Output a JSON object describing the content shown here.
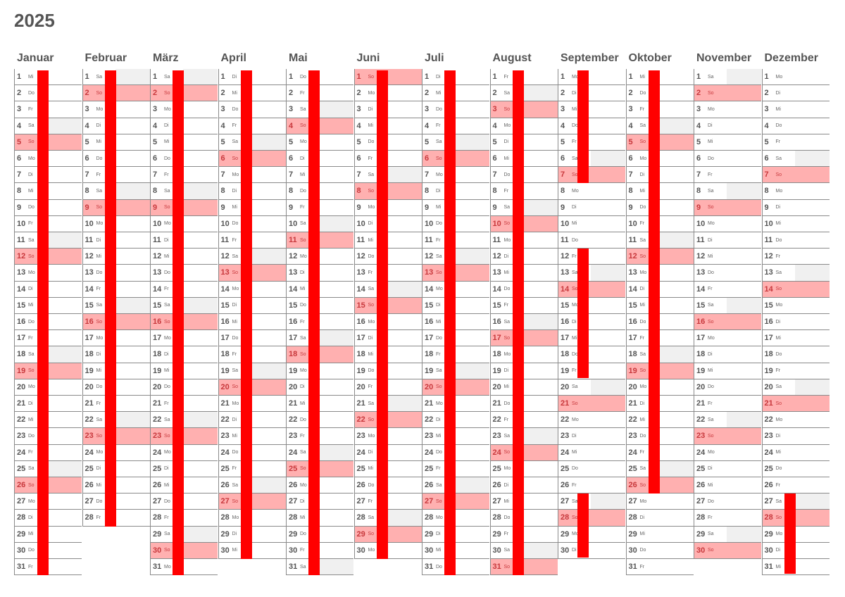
{
  "year": "2025",
  "colors": {
    "sunday_fill": "#ffb0b0",
    "saturday_fill": "#f0f0f0",
    "vacation_bar": "#ff0000",
    "text": "#555555"
  },
  "weekday_labels": [
    "Mo",
    "Di",
    "Mi",
    "Do",
    "Fr",
    "Sa",
    "So"
  ],
  "months": [
    {
      "name": "Januar",
      "days": 31,
      "first_weekday": 2,
      "vacation_days": [
        [
          1,
          31
        ]
      ]
    },
    {
      "name": "Februar",
      "days": 28,
      "first_weekday": 5,
      "vacation_days": [
        [
          1,
          28
        ]
      ]
    },
    {
      "name": "März",
      "days": 31,
      "first_weekday": 5,
      "vacation_days": [
        [
          1,
          31
        ]
      ]
    },
    {
      "name": "April",
      "days": 30,
      "first_weekday": 1,
      "vacation_days": [
        [
          1,
          30
        ]
      ]
    },
    {
      "name": "Mai",
      "days": 31,
      "first_weekday": 3,
      "vacation_days": [
        [
          1,
          31
        ]
      ]
    },
    {
      "name": "Juni",
      "days": 30,
      "first_weekday": 6,
      "vacation_days": [
        [
          1,
          30
        ]
      ]
    },
    {
      "name": "Juli",
      "days": 31,
      "first_weekday": 1,
      "vacation_days": [
        [
          1,
          31
        ]
      ]
    },
    {
      "name": "August",
      "days": 31,
      "first_weekday": 4,
      "vacation_days": [
        [
          1,
          31
        ]
      ]
    },
    {
      "name": "September",
      "days": 30,
      "first_weekday": 0,
      "vacation_days": [
        [
          1,
          7
        ],
        [
          12,
          19
        ],
        [
          27,
          30
        ]
      ]
    },
    {
      "name": "Oktober",
      "days": 31,
      "first_weekday": 2,
      "vacation_days": [
        [
          1,
          26
        ]
      ]
    },
    {
      "name": "November",
      "days": 30,
      "first_weekday": 5,
      "vacation_days": []
    },
    {
      "name": "Dezember",
      "days": 31,
      "first_weekday": 0,
      "vacation_days": [
        [
          27,
          31
        ]
      ]
    }
  ]
}
